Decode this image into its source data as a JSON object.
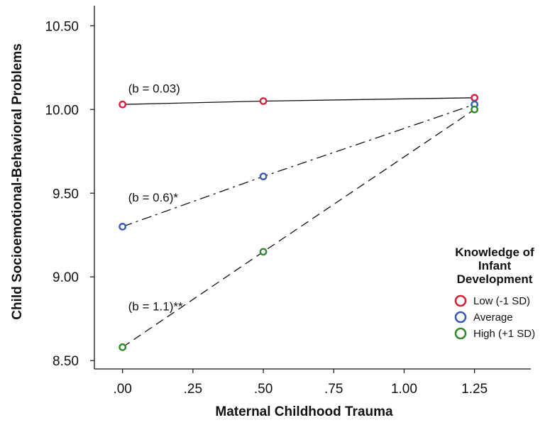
{
  "chart_data": {
    "type": "line",
    "xlabel": "Maternal Childhood Trauma",
    "ylabel": "Child Socioemotional-Behavioral Problems",
    "xlim": [
      -0.1,
      1.45
    ],
    "ylim": [
      8.45,
      10.62
    ],
    "x_ticks": [
      0,
      0.25,
      0.5,
      0.75,
      1.0,
      1.25
    ],
    "x_tick_labels": [
      ".00",
      ".25",
      ".50",
      ".75",
      "1.00",
      "1.25"
    ],
    "y_ticks": [
      8.5,
      9.0,
      9.5,
      10.0,
      10.5
    ],
    "y_tick_labels": [
      "8.50",
      "9.00",
      "9.50",
      "10.00",
      "10.50"
    ],
    "x": [
      0,
      0.5,
      1.25
    ],
    "grid": false,
    "series": [
      {
        "name": "Low (-1 SD)",
        "values": [
          10.03,
          10.05,
          10.07
        ],
        "color": "#d7203a",
        "dash": "solid"
      },
      {
        "name": "Average",
        "values": [
          9.3,
          9.6,
          10.03
        ],
        "color": "#3b5bb5",
        "dash": "dashdot"
      },
      {
        "name": "High (+1 SD)",
        "values": [
          8.58,
          9.15,
          10.0
        ],
        "color": "#2e8b2e",
        "dash": "dashed"
      }
    ],
    "annotations": [
      {
        "text": "(b = 0.03)",
        "x": 0.02,
        "y": 10.1
      },
      {
        "text": "(b = 0.6)*",
        "x": 0.02,
        "y": 9.45
      },
      {
        "text": "(b = 1.1)**",
        "x": 0.02,
        "y": 8.8
      }
    ],
    "legend": {
      "title_lines": [
        "Knowledge of",
        "Infant",
        "Development"
      ],
      "placement": "right"
    }
  }
}
